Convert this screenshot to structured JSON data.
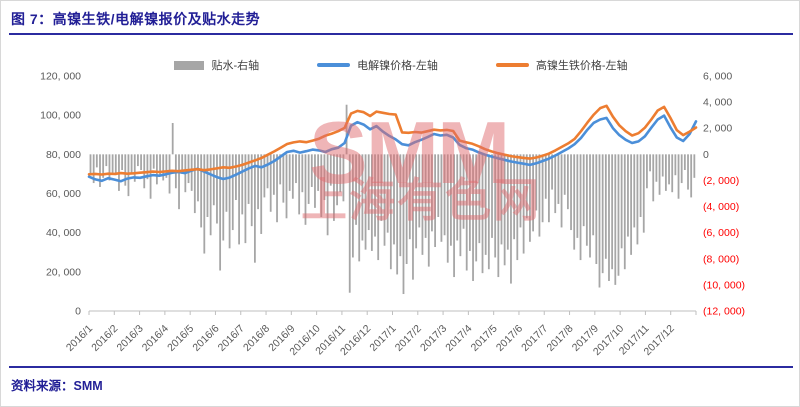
{
  "header": {
    "title": "图 7：高镍生铁/电解镍报价及贴水走势"
  },
  "footer": {
    "source": "资料来源：SMM"
  },
  "watermark": {
    "line1": "SMM",
    "line2": "上海有色网"
  },
  "colors": {
    "accent_navy": "#221f96",
    "bar_gray": "#a6a6a6",
    "line_blue": "#4b8fd9",
    "line_orange": "#ed7d31",
    "axis_text": "#595959",
    "negative_red": "#ff0000",
    "axis_line": "#bfbfbf"
  },
  "legend": [
    {
      "label": "贴水-右轴",
      "type": "bar",
      "color": "#a6a6a6"
    },
    {
      "label": "电解镍价格-左轴",
      "type": "line",
      "color": "#4b8fd9"
    },
    {
      "label": "高镍生铁价格-左轴",
      "type": "line",
      "color": "#ed7d31"
    }
  ],
  "chart_data": {
    "type": "combo-bar-line",
    "title": "高镍生铁/电解镍报价及贴水走势",
    "grid": false,
    "legend_position": "top-center",
    "x_categories": [
      "2016/1",
      "2016/2",
      "2016/3",
      "2016/4",
      "2016/5",
      "2016/6",
      "2016/7",
      "2016/8",
      "2016/9",
      "2016/10",
      "2016/11",
      "2016/12",
      "2017/1",
      "2017/2",
      "2017/3",
      "2017/4",
      "2017/5",
      "2017/6",
      "2017/7",
      "2017/8",
      "2017/9",
      "2017/10",
      "2017/11",
      "2017/12"
    ],
    "left_axis": {
      "min": 0,
      "max": 120000,
      "tick_labels": [
        "120, 000",
        "100, 000",
        "80, 000",
        "60, 000",
        "40, 000",
        "20, 000",
        "0"
      ]
    },
    "right_axis": {
      "min": -12000,
      "max": 6000,
      "tick_labels": [
        "6, 000",
        "4, 000",
        "2, 000",
        "0",
        "(2, 000)",
        "(4, 000)",
        "(6, 000)",
        "(8, 000)",
        "(10, 000)",
        "(12, 000)"
      ]
    },
    "series": [
      {
        "name": "贴水-右轴",
        "type": "bar",
        "axis": "right",
        "color": "#a6a6a6",
        "values": [
          -1500,
          -2200,
          -1000,
          -2500,
          -1800,
          -900,
          -2000,
          -1400,
          -1600,
          -2800,
          -1200,
          -2400,
          -3200,
          -1500,
          -2100,
          -900,
          -1200,
          -2600,
          -1900,
          -3400,
          -1100,
          -2300,
          -1600,
          -2000,
          -1800,
          -3000,
          2400,
          -2600,
          -4200,
          -1500,
          -2900,
          -2200,
          -2800,
          -4500,
          -3600,
          -5600,
          -7600,
          -4800,
          -6200,
          -3900,
          -5300,
          -8900,
          -6600,
          -4400,
          -7200,
          -5800,
          -3500,
          -6900,
          -4600,
          -6800,
          -3800,
          -5500,
          -8300,
          -4200,
          -6100,
          -3300,
          -2600,
          -4400,
          -3100,
          -5200,
          -2300,
          -3700,
          -4900,
          -2800,
          -3400,
          -2200,
          -4600,
          -2900,
          -5400,
          -3800,
          -2500,
          -4100,
          -2800,
          -4800,
          -3500,
          -6200,
          -2400,
          -5100,
          -3900,
          -2900,
          -3600,
          3800,
          -10600,
          -7900,
          -5400,
          -8200,
          -6600,
          -7300,
          -5800,
          -7400,
          -6300,
          -8100,
          -5100,
          -7000,
          -6000,
          -8800,
          -6900,
          -9200,
          -7800,
          -10700,
          -8400,
          -6500,
          -9600,
          -7200,
          -5600,
          -7700,
          -6400,
          -8600,
          -5900,
          -7100,
          -4800,
          -6700,
          -6200,
          -8300,
          -7000,
          -9400,
          -6600,
          -7800,
          -5700,
          -8900,
          -7400,
          -9700,
          -8200,
          -6800,
          -9100,
          -7700,
          -8800,
          -6400,
          -7900,
          -9400,
          -6900,
          -8500,
          -7300,
          -9900,
          -6500,
          -8100,
          -5600,
          -7600,
          -4900,
          -6700,
          -5900,
          -4300,
          -6300,
          -5200,
          -3400,
          -5200,
          -2700,
          -4500,
          -3800,
          -5600,
          -3100,
          -4200,
          -5800,
          -7300,
          -6400,
          -8100,
          -5500,
          -7000,
          -7900,
          -6200,
          -8400,
          -10200,
          -9100,
          -8000,
          -9700,
          -8800,
          -10000,
          -9300,
          -7200,
          -8800,
          -6300,
          -7700,
          -5600,
          -6900,
          -4800,
          -6000,
          -2600,
          -1300,
          -3600,
          -2100,
          -3100,
          -1700,
          -2800,
          -2300,
          -2900,
          -1600,
          -3400,
          -2200,
          -1200,
          -2700,
          -3300,
          -1800
        ]
      },
      {
        "name": "电解镍价格-左轴",
        "type": "line",
        "axis": "left",
        "color": "#4b8fd9",
        "values": [
          68600,
          67200,
          66500,
          67800,
          67100,
          66300,
          67600,
          68200,
          68000,
          68800,
          69400,
          69100,
          69800,
          70600,
          71000,
          70400,
          71600,
          72600,
          71200,
          69800,
          68400,
          67400,
          68100,
          69600,
          71200,
          72800,
          74100,
          73400,
          74800,
          76600,
          78900,
          81200,
          81800,
          80900,
          81600,
          82400,
          82000,
          81200,
          82600,
          83400,
          85800,
          94600,
          96400,
          95200,
          92800,
          94400,
          91600,
          89400,
          87600,
          85200,
          84600,
          86200,
          87400,
          88800,
          90400,
          89600,
          90000,
          88600,
          84800,
          83200,
          82400,
          81000,
          79800,
          78900,
          78000,
          77200,
          76400,
          75800,
          75200,
          74600,
          75400,
          76600,
          77800,
          79400,
          81200,
          83000,
          85200,
          88400,
          92600,
          96100,
          97800,
          98600,
          93400,
          89800,
          87400,
          85800,
          86600,
          89200,
          93600,
          97800,
          99800,
          93800,
          88600,
          86800,
          90400,
          96800
        ]
      },
      {
        "name": "高镍生铁价格-左轴",
        "type": "line",
        "axis": "left",
        "color": "#ed7d31",
        "values": [
          69800,
          70000,
          69700,
          70100,
          70000,
          70400,
          70100,
          70300,
          70600,
          70900,
          71200,
          71000,
          71300,
          71600,
          71400,
          71800,
          72100,
          72400,
          71900,
          72300,
          72800,
          73400,
          73100,
          73800,
          74600,
          75800,
          76900,
          78200,
          79800,
          81500,
          83400,
          85300,
          86100,
          86600,
          86200,
          87000,
          88000,
          89500,
          90600,
          91800,
          93500,
          100800,
          102200,
          101500,
          99600,
          101800,
          101200,
          100600,
          100300,
          91200,
          91000,
          91400,
          91100,
          91800,
          92600,
          92200,
          92500,
          91900,
          87000,
          86200,
          85400,
          84100,
          82600,
          81500,
          80600,
          79800,
          79100,
          78600,
          78200,
          77800,
          78400,
          79300,
          80400,
          82000,
          83800,
          85600,
          87900,
          91800,
          96200,
          100300,
          103600,
          104800,
          99200,
          94800,
          91800,
          89600,
          90800,
          93600,
          97800,
          102400,
          104200,
          98600,
          92400,
          89800,
          91600,
          93700
        ]
      }
    ]
  }
}
